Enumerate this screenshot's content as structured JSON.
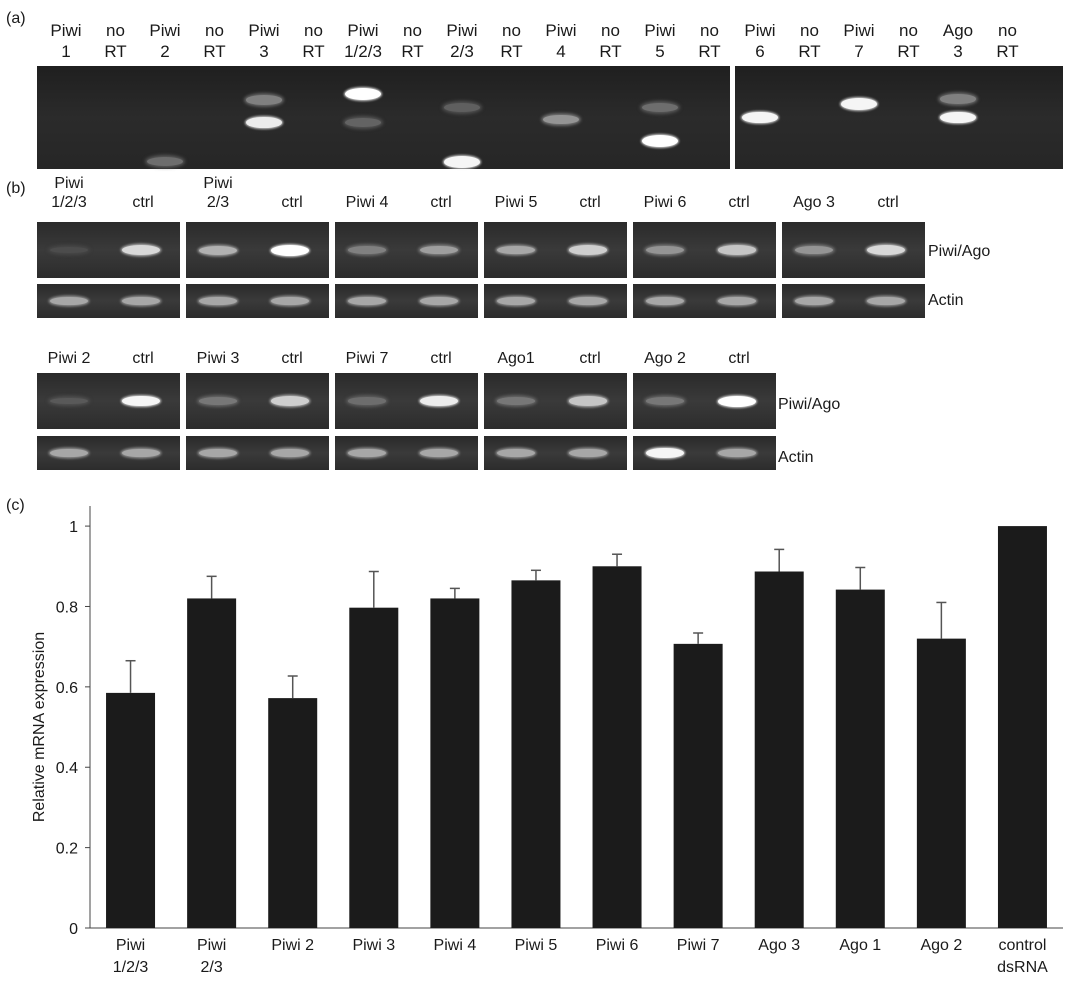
{
  "panel_a": {
    "label": "(a)",
    "lanes": [
      {
        "name": [
          "Piwi",
          "1"
        ],
        "bands": []
      },
      {
        "name": [
          "no",
          "RT"
        ],
        "bands": []
      },
      {
        "name": [
          "Piwi",
          "2"
        ],
        "bands": [
          {
            "rel": 0.93,
            "intensity": 0.25
          }
        ]
      },
      {
        "name": [
          "no",
          "RT"
        ],
        "bands": []
      },
      {
        "name": [
          "Piwi",
          "3"
        ],
        "bands": [
          {
            "rel": 0.33,
            "intensity": 0.35
          },
          {
            "rel": 0.55,
            "intensity": 0.9
          }
        ]
      },
      {
        "name": [
          "no",
          "RT"
        ],
        "bands": []
      },
      {
        "name": [
          "Piwi",
          "1/2/3"
        ],
        "bands": [
          {
            "rel": 0.27,
            "intensity": 1.0
          },
          {
            "rel": 0.55,
            "intensity": 0.2
          }
        ]
      },
      {
        "name": [
          "no",
          "RT"
        ],
        "bands": []
      },
      {
        "name": [
          "Piwi",
          "2/3"
        ],
        "bands": [
          {
            "rel": 0.4,
            "intensity": 0.18
          },
          {
            "rel": 0.93,
            "intensity": 0.95
          }
        ]
      },
      {
        "name": [
          "no",
          "RT"
        ],
        "bands": []
      },
      {
        "name": [
          "Piwi",
          "4"
        ],
        "bands": [
          {
            "rel": 0.52,
            "intensity": 0.45
          }
        ]
      },
      {
        "name": [
          "no",
          "RT"
        ],
        "bands": []
      },
      {
        "name": [
          "Piwi",
          "5"
        ],
        "bands": [
          {
            "rel": 0.4,
            "intensity": 0.25
          },
          {
            "rel": 0.73,
            "intensity": 1.0
          }
        ]
      },
      {
        "name": [
          "no",
          "RT"
        ],
        "bands": []
      },
      {
        "name": [
          "Piwi",
          "6"
        ],
        "bands": [
          {
            "rel": 0.5,
            "intensity": 0.95
          }
        ]
      },
      {
        "name": [
          "no",
          "RT"
        ],
        "bands": []
      },
      {
        "name": [
          "Piwi",
          "7"
        ],
        "bands": [
          {
            "rel": 0.37,
            "intensity": 0.95
          }
        ]
      },
      {
        "name": [
          "no",
          "RT"
        ],
        "bands": []
      },
      {
        "name": [
          "Ago",
          "3"
        ],
        "bands": [
          {
            "rel": 0.32,
            "intensity": 0.35
          },
          {
            "rel": 0.5,
            "intensity": 0.95
          }
        ]
      },
      {
        "name": [
          "no",
          "RT"
        ],
        "bands": []
      }
    ]
  },
  "panel_b": {
    "label": "(b)",
    "side_labels": {
      "target": "Piwi/Ago",
      "reference": "Actin"
    },
    "row1": [
      {
        "sample": "Piwi\n1/2/3",
        "ctrl": "ctrl",
        "piwi": [
          0.08,
          0.8
        ],
        "actin": [
          0.55,
          0.55
        ]
      },
      {
        "sample": "Piwi\n2/3",
        "ctrl": "ctrl",
        "piwi": [
          0.6,
          1.0
        ],
        "actin": [
          0.55,
          0.55
        ]
      },
      {
        "sample": "Piwi 4",
        "ctrl": "ctrl",
        "piwi": [
          0.35,
          0.5
        ],
        "actin": [
          0.55,
          0.55
        ]
      },
      {
        "sample": "Piwi 5",
        "ctrl": "ctrl",
        "piwi": [
          0.55,
          0.75
        ],
        "actin": [
          0.55,
          0.55
        ]
      },
      {
        "sample": "Piwi 6",
        "ctrl": "ctrl",
        "piwi": [
          0.45,
          0.7
        ],
        "actin": [
          0.55,
          0.55
        ]
      },
      {
        "sample": "Ago 3",
        "ctrl": "ctrl",
        "piwi": [
          0.45,
          0.8
        ],
        "actin": [
          0.55,
          0.55
        ]
      }
    ],
    "row2": [
      {
        "sample": "Piwi 2",
        "ctrl": "ctrl",
        "piwi": [
          0.15,
          0.95
        ],
        "actin": [
          0.55,
          0.55
        ]
      },
      {
        "sample": "Piwi 3",
        "ctrl": "ctrl",
        "piwi": [
          0.3,
          0.75
        ],
        "actin": [
          0.55,
          0.55
        ]
      },
      {
        "sample": "Piwi 7",
        "ctrl": "ctrl",
        "piwi": [
          0.25,
          0.9
        ],
        "actin": [
          0.55,
          0.55
        ]
      },
      {
        "sample": "Ago1",
        "ctrl": "ctrl",
        "piwi": [
          0.3,
          0.7
        ],
        "actin": [
          0.55,
          0.55
        ]
      },
      {
        "sample": "Ago 2",
        "ctrl": "ctrl",
        "piwi": [
          0.3,
          1.0
        ],
        "actin": [
          0.95,
          0.55
        ]
      }
    ]
  },
  "panel_c": {
    "label": "(c)"
  },
  "chart_data": {
    "type": "bar",
    "title": "",
    "xlabel": "",
    "ylabel": "Relative mRNA expression",
    "ylim": [
      0,
      1.05
    ],
    "yticks": [
      "0",
      "0.2",
      "0.4",
      "0.6",
      "0.8",
      "1"
    ],
    "categories": [
      "Piwi\n1/2/3",
      "Piwi\n2/3",
      "Piwi 2",
      "Piwi 3",
      "Piwi 4",
      "Piwi 5",
      "Piwi 6",
      "Piwi 7",
      "Ago 3",
      "Ago 1",
      "Ago 2",
      "control\ndsRNA"
    ],
    "values": [
      0.585,
      0.82,
      0.572,
      0.797,
      0.82,
      0.865,
      0.9,
      0.707,
      0.887,
      0.842,
      0.72,
      1.0
    ],
    "errors": [
      0.08,
      0.055,
      0.055,
      0.09,
      0.025,
      0.025,
      0.03,
      0.027,
      0.055,
      0.055,
      0.09,
      0.0
    ],
    "bar_color": "#1b1b1b",
    "grid": false
  }
}
